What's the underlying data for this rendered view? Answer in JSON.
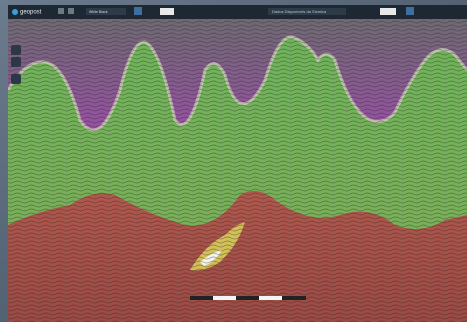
{
  "toolbar": {
    "logo": "geopost",
    "colormap": "White Black",
    "dataset": "Dados Disponíveis da Sísmica"
  }
}
